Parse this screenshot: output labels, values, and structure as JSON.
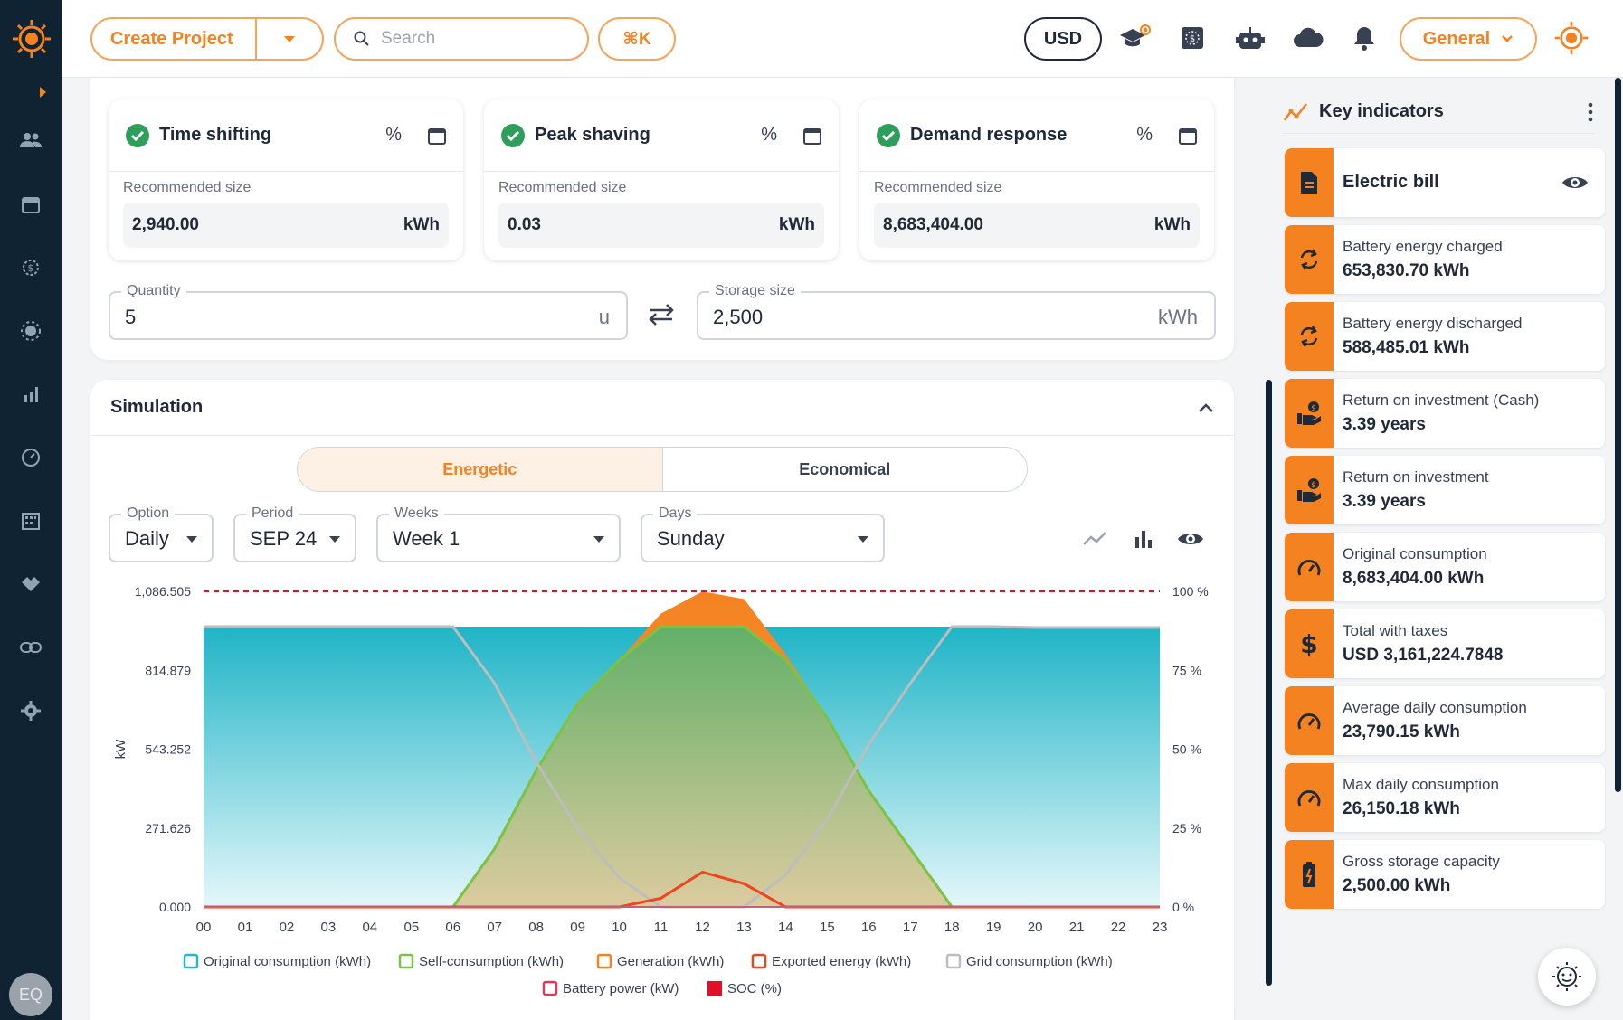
{
  "sidebar": {
    "avatar_initials": "EQ"
  },
  "topbar": {
    "create_project_label": "Create Project",
    "search_placeholder": "Search",
    "shortcut_label": "⌘K",
    "currency_label": "USD",
    "workspace_label": "General"
  },
  "strategies": [
    {
      "title": "Time shifting",
      "pct_symbol": "%",
      "size_label": "Recommended size",
      "value": "2,940.00",
      "unit": "kWh"
    },
    {
      "title": "Peak shaving",
      "pct_symbol": "%",
      "size_label": "Recommended size",
      "value": "0.03",
      "unit": "kWh"
    },
    {
      "title": "Demand response",
      "pct_symbol": "%",
      "size_label": "Recommended size",
      "value": "8,683,404.00",
      "unit": "kWh"
    }
  ],
  "quantity": {
    "label": "Quantity",
    "value": "5",
    "unit": "u"
  },
  "storage": {
    "label": "Storage size",
    "value": "2,500",
    "unit": "kWh"
  },
  "simulation": {
    "title": "Simulation",
    "tabs": [
      "Energetic",
      "Economical"
    ],
    "filters": {
      "option": {
        "label": "Option",
        "value": "Daily"
      },
      "period": {
        "label": "Period",
        "value": "SEP 24"
      },
      "weeks": {
        "label": "Weeks",
        "value": "Week 1"
      },
      "days": {
        "label": "Days",
        "value": "Sunday"
      }
    }
  },
  "chart_data": {
    "type": "area",
    "x": [
      "00",
      "01",
      "02",
      "03",
      "04",
      "05",
      "06",
      "07",
      "08",
      "09",
      "10",
      "11",
      "12",
      "13",
      "14",
      "15",
      "16",
      "17",
      "18",
      "19",
      "20",
      "21",
      "22",
      "23"
    ],
    "ylabel": "kW",
    "y_ticks": [
      "0.000",
      "271.626",
      "543.252",
      "814.879",
      "1,086.505"
    ],
    "y2_ticks": [
      "0 %",
      "25 %",
      "50 %",
      "75 %",
      "100 %"
    ],
    "ylim": [
      0,
      1086.505
    ],
    "reference_line": 1086.505,
    "series": [
      {
        "name": "Original consumption (kWh)",
        "color": "#22b8cf",
        "values": [
          965,
          965,
          965,
          965,
          965,
          965,
          965,
          965,
          965,
          965,
          965,
          965,
          965,
          965,
          965,
          965,
          965,
          965,
          965,
          965,
          962,
          962,
          962,
          962
        ]
      },
      {
        "name": "Self-consumption (kWh)",
        "color": "#7cc243",
        "values": [
          0,
          0,
          0,
          0,
          0,
          0,
          0,
          200,
          470,
          700,
          850,
          965,
          965,
          965,
          850,
          650,
          400,
          200,
          0,
          0,
          0,
          0,
          0,
          0
        ]
      },
      {
        "name": "Generation (kWh)",
        "color": "#f58220",
        "values": [
          0,
          0,
          0,
          0,
          0,
          0,
          0,
          200,
          470,
          700,
          850,
          1010,
          1086,
          1060,
          870,
          650,
          400,
          200,
          0,
          0,
          0,
          0,
          0,
          0
        ]
      },
      {
        "name": "Exported energy (kWh)",
        "color": "#f0441c",
        "values": [
          0,
          0,
          0,
          0,
          0,
          0,
          0,
          0,
          0,
          0,
          0,
          30,
          120,
          80,
          0,
          0,
          0,
          0,
          0,
          0,
          0,
          0,
          0,
          0
        ]
      },
      {
        "name": "Grid consumption (kWh)",
        "color": "#bdbdbd",
        "values": [
          965,
          965,
          965,
          965,
          965,
          965,
          965,
          770,
          500,
          270,
          100,
          0,
          0,
          0,
          110,
          300,
          560,
          770,
          965,
          965,
          962,
          962,
          962,
          962
        ]
      },
      {
        "name": "Battery power (kW)",
        "color": "#e8335a",
        "values": [
          0,
          0,
          0,
          0,
          0,
          0,
          0,
          0,
          0,
          0,
          0,
          0,
          0,
          0,
          0,
          0,
          0,
          0,
          0,
          0,
          0,
          0,
          0,
          0
        ]
      },
      {
        "name": "SOC (%)",
        "color": "#e0102a",
        "values": [
          0,
          0,
          0,
          0,
          0,
          0,
          0,
          0,
          0,
          0,
          0,
          0,
          0,
          0,
          0,
          0,
          0,
          0,
          0,
          0,
          0,
          0,
          0,
          0
        ]
      }
    ]
  },
  "key_indicators": {
    "title": "Key indicators",
    "electric_bill": "Electric bill",
    "items": [
      {
        "label": "Battery energy charged",
        "value": "653,830.70 kWh",
        "icon": "refresh-icon"
      },
      {
        "label": "Battery energy discharged",
        "value": "588,485.01 kWh",
        "icon": "refresh-icon"
      },
      {
        "label": "Return on investment (Cash)",
        "value": "3.39 years",
        "icon": "hand-money-icon"
      },
      {
        "label": "Return on investment",
        "value": "3.39 years",
        "icon": "hand-money-icon"
      },
      {
        "label": "Original consumption",
        "value": "8,683,404.00 kWh",
        "icon": "gauge-icon"
      },
      {
        "label": "Total with taxes",
        "value": "USD 3,161,224.7848",
        "icon": "dollar-icon"
      },
      {
        "label": "Average daily consumption",
        "value": "23,790.15 kWh",
        "icon": "gauge-icon"
      },
      {
        "label": "Max daily consumption",
        "value": "26,150.18 kWh",
        "icon": "gauge-icon"
      },
      {
        "label": "Gross storage capacity",
        "value": "2,500.00 kWh",
        "icon": "battery-icon"
      }
    ]
  }
}
